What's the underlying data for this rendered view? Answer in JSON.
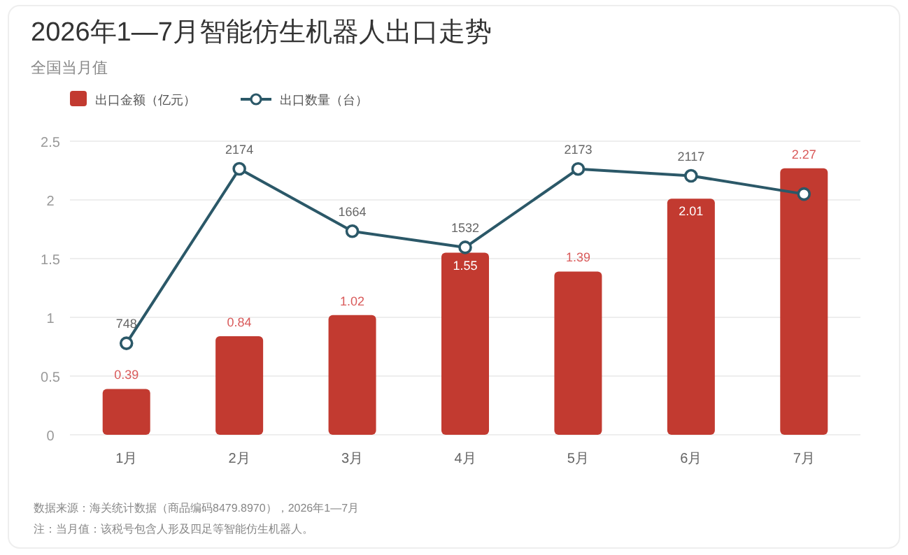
{
  "chart_data": {
    "type": "bar",
    "title": "2026年1—7月智能仿生机器人出口走势",
    "subtitle": "全国当月值",
    "categories": [
      "1月",
      "2月",
      "3月",
      "4月",
      "5月",
      "6月",
      "7月"
    ],
    "series": [
      {
        "name": "出口金额（亿元）",
        "color": "#c23a30",
        "values": [
          0.39,
          0.84,
          1.02,
          1.55,
          1.39,
          2.01,
          2.27
        ],
        "value_labels": [
          "0.39",
          "0.84",
          "1.02",
          "1.55",
          "1.39",
          "2.01",
          "2.27"
        ]
      },
      {
        "name": "出口数量（台）",
        "type": "line",
        "axis": "y2",
        "color": "#2b5868",
        "values": [
          748,
          2174,
          1664,
          1532,
          2173,
          2117,
          1968
        ],
        "value_labels": [
          "748",
          "2174",
          "1664",
          "1532",
          "2173",
          "2117",
          null
        ]
      }
    ],
    "ylim": [
      0,
      2.5
    ],
    "yticks": [
      0,
      0.5,
      1,
      1.5,
      2,
      2.5
    ],
    "y2lim": [
      0,
      2400
    ],
    "grid": "y",
    "legend": "top left",
    "marker": "circle",
    "annotations": [
      "数据来源：海关统计数据（商品编码8479.8970），2026年1—7月",
      "注：当月值：该税号包含人形及四足等智能仿生机器人。"
    ]
  }
}
